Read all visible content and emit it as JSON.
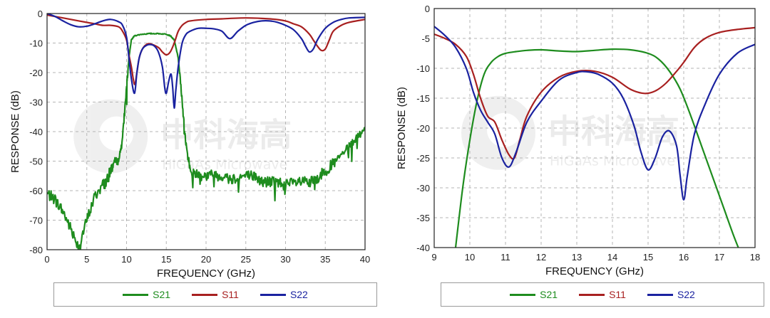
{
  "chart_data": [
    {
      "type": "line",
      "xlabel": "FREQUENCY (GHz)",
      "ylabel": "RESPONSE (dB)",
      "xlim": [
        0,
        40
      ],
      "ylim": [
        -80,
        0
      ],
      "xticks": [
        0,
        5,
        10,
        15,
        20,
        25,
        30,
        35,
        40
      ],
      "yticks": [
        0,
        -10,
        -20,
        -30,
        -40,
        -50,
        -60,
        -70,
        -80
      ],
      "xtick_labels": [
        "0",
        "5",
        "10",
        "15",
        "20",
        "25",
        "30",
        "35",
        "40"
      ],
      "ytick_labels": [
        "0",
        "-10",
        "-20",
        "-30",
        "-40",
        "-50",
        "-60",
        "-70",
        "-80"
      ],
      "grid": true,
      "legend_position": "bottom",
      "watermark": {
        "main": "中科海高",
        "sub": "HiGaAs Microwave"
      },
      "series": [
        {
          "name": "S21",
          "color": "#1e8c1e",
          "noise": 1.2,
          "x": [
            0,
            1,
            2,
            3,
            4,
            5,
            6,
            7,
            7.5,
            8,
            8.5,
            9,
            9.5,
            10,
            10.3,
            10.6,
            11,
            12,
            13,
            14,
            15,
            15.5,
            16,
            16.5,
            17,
            17.5,
            18,
            19,
            20,
            21,
            22,
            23,
            24,
            25,
            26,
            27,
            28,
            29,
            30,
            31,
            32,
            33,
            34,
            35,
            36,
            37,
            38,
            39,
            40
          ],
          "y": [
            -61,
            -63,
            -67,
            -73,
            -79,
            -70,
            -62,
            -58,
            -57,
            -53,
            -50,
            -50,
            -42,
            -25,
            -15,
            -9,
            -7.5,
            -7,
            -6.8,
            -6.8,
            -7,
            -7.5,
            -9,
            -15,
            -30,
            -45,
            -53,
            -54.5,
            -55,
            -54.5,
            -55,
            -56,
            -55.5,
            -55,
            -55,
            -57,
            -57,
            -57,
            -58,
            -57.5,
            -57,
            -57.5,
            -56,
            -53,
            -51,
            -48,
            -45,
            -42,
            -39
          ]
        },
        {
          "name": "S11",
          "color": "#a82020",
          "x": [
            0,
            2,
            4,
            6,
            7,
            8,
            9,
            9.5,
            10,
            10.3,
            10.6,
            11,
            11.3,
            11.6,
            12,
            12.5,
            13,
            14,
            14.5,
            15,
            15.5,
            16,
            16.5,
            17,
            17.5,
            18,
            20,
            22,
            25,
            28,
            30,
            31,
            32,
            33,
            33.5,
            34,
            34.5,
            35,
            35.5,
            36,
            37,
            38,
            40
          ],
          "y": [
            -0.5,
            -1.5,
            -2.5,
            -3.5,
            -4,
            -4,
            -4.5,
            -6,
            -9,
            -14,
            -18,
            -24,
            -20,
            -15,
            -12,
            -10.5,
            -10.3,
            -11.5,
            -13,
            -14,
            -13,
            -10,
            -6,
            -4,
            -3,
            -2.5,
            -2,
            -1.8,
            -1.5,
            -1.8,
            -2.5,
            -3.5,
            -4.5,
            -7,
            -9,
            -11,
            -12.5,
            -12,
            -9,
            -6,
            -4,
            -3,
            -2
          ]
        },
        {
          "name": "S22",
          "color": "#1a22a0",
          "x": [
            0,
            1,
            2,
            3,
            4,
            5,
            6,
            7,
            8,
            9,
            9.5,
            10,
            10.3,
            10.6,
            11,
            11.3,
            11.6,
            12,
            12.5,
            13,
            13.5,
            14,
            14.5,
            14.8,
            15,
            15.3,
            15.6,
            15.8,
            16,
            16.2,
            16.5,
            17,
            17.5,
            18,
            19,
            20,
            21,
            22,
            23,
            24,
            25,
            26,
            27,
            28,
            29,
            30,
            31,
            32,
            32.5,
            33,
            33.5,
            34,
            35,
            36,
            37,
            38,
            40
          ],
          "y": [
            0,
            -1,
            -2.5,
            -3.8,
            -4.5,
            -4.3,
            -3.5,
            -2.5,
            -2,
            -2.8,
            -4,
            -8,
            -15,
            -22,
            -27,
            -20,
            -15,
            -12,
            -10.8,
            -10.5,
            -11,
            -13,
            -18,
            -25,
            -27,
            -23,
            -20.5,
            -25,
            -32,
            -26,
            -18,
            -10,
            -7,
            -6,
            -5,
            -5,
            -5.2,
            -6,
            -8.5,
            -6,
            -4,
            -3,
            -2.5,
            -2.5,
            -3,
            -4,
            -5.5,
            -8.5,
            -11,
            -13,
            -12,
            -9,
            -5,
            -3,
            -2,
            -1.5,
            -1.3
          ]
        }
      ]
    },
    {
      "type": "line",
      "xlabel": "FREQUENCY (GHz)",
      "ylabel": "RESPONSE (dB)",
      "xlim": [
        9,
        18
      ],
      "ylim": [
        -40,
        0
      ],
      "xticks": [
        9,
        10,
        11,
        12,
        13,
        14,
        15,
        16,
        17,
        18
      ],
      "yticks": [
        0,
        -5,
        -10,
        -15,
        -20,
        -25,
        -30,
        -35,
        -40
      ],
      "xtick_labels": [
        "9",
        "10",
        "11",
        "12",
        "13",
        "14",
        "15",
        "16",
        "17",
        "18"
      ],
      "ytick_labels": [
        "0",
        "-5",
        "-10",
        "-15",
        "-20",
        "-25",
        "-30",
        "-35",
        "-40"
      ],
      "grid": true,
      "legend_position": "bottom",
      "watermark": {
        "main": "中科海高",
        "sub": "HiGaAs Microwave"
      },
      "series": [
        {
          "name": "S21",
          "color": "#1e8c1e",
          "x": [
            9.6,
            9.8,
            10,
            10.2,
            10.4,
            10.6,
            10.8,
            11,
            11.3,
            11.6,
            12,
            12.5,
            13,
            13.5,
            14,
            14.5,
            15,
            15.3,
            15.6,
            15.9,
            16.2,
            16.5,
            16.8,
            17.1,
            17.4,
            17.6
          ],
          "y": [
            -40,
            -30,
            -22,
            -15.5,
            -11,
            -9,
            -8,
            -7.5,
            -7.2,
            -7,
            -6.9,
            -7.1,
            -7.2,
            -7,
            -6.8,
            -6.9,
            -7.5,
            -8.5,
            -10.5,
            -13.5,
            -18,
            -23,
            -28,
            -33,
            -38,
            -41
          ]
        },
        {
          "name": "S11",
          "color": "#a82020",
          "x": [
            9,
            9.3,
            9.6,
            9.9,
            10.1,
            10.3,
            10.5,
            10.7,
            10.9,
            11.1,
            11.25,
            11.4,
            11.6,
            12,
            12.5,
            13,
            13.5,
            14,
            14.5,
            14.9,
            15.2,
            15.5,
            15.8,
            16,
            16.3,
            16.6,
            17,
            17.5,
            18
          ],
          "y": [
            -4.3,
            -5,
            -6,
            -8,
            -11,
            -15,
            -18,
            -19,
            -22,
            -24.5,
            -25,
            -22,
            -18,
            -14,
            -11.5,
            -10.5,
            -10.5,
            -11.5,
            -13.5,
            -14.2,
            -13.8,
            -12.5,
            -10.5,
            -9,
            -6.5,
            -5,
            -4,
            -3.5,
            -3.2
          ]
        },
        {
          "name": "S22",
          "color": "#1a22a0",
          "x": [
            9,
            9.3,
            9.6,
            9.9,
            10.1,
            10.3,
            10.5,
            10.7,
            10.9,
            11.1,
            11.3,
            11.6,
            12,
            12.5,
            13,
            13.3,
            13.6,
            14,
            14.3,
            14.6,
            14.8,
            15,
            15.2,
            15.4,
            15.6,
            15.8,
            15.9,
            16,
            16.1,
            16.3,
            16.6,
            17,
            17.5,
            18
          ],
          "y": [
            -3,
            -4.5,
            -6.5,
            -10,
            -14,
            -17,
            -19,
            -21,
            -25,
            -26.5,
            -24,
            -19,
            -15.5,
            -12,
            -10.7,
            -10.6,
            -11,
            -12.5,
            -15,
            -19.5,
            -24,
            -27,
            -25,
            -21.5,
            -20.5,
            -23,
            -28,
            -32,
            -28,
            -21,
            -16,
            -11,
            -7.5,
            -6
          ]
        }
      ]
    }
  ]
}
